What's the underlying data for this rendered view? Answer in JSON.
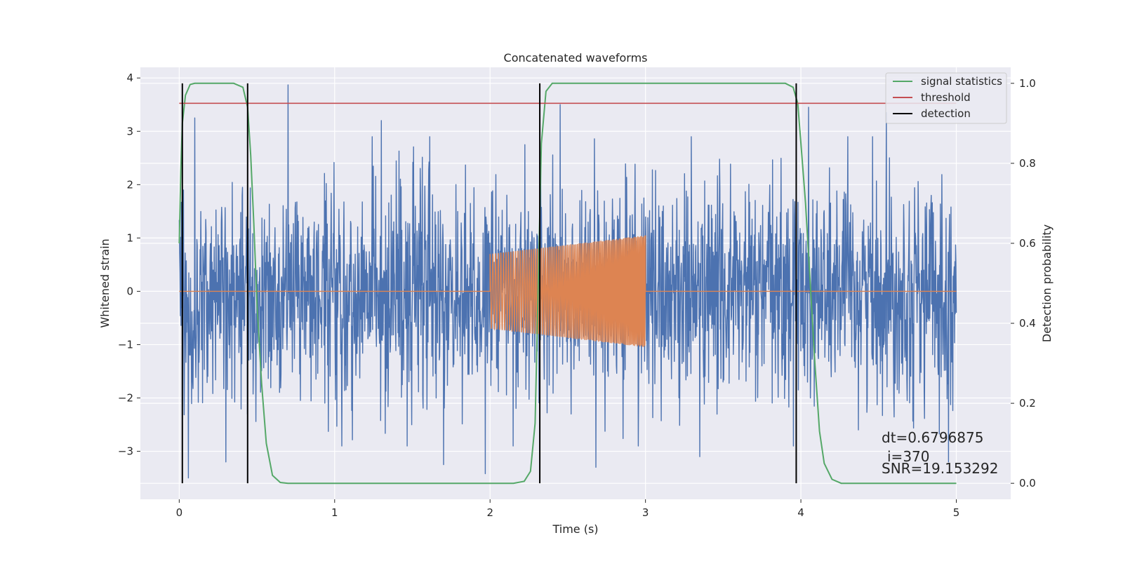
{
  "chart_data": {
    "type": "line",
    "title": "Concatenated waveforms",
    "xlabel": "Time (s)",
    "ylabel": "Whitened strain",
    "y2label": "Detection probability",
    "xlim": [
      -0.25,
      5.35
    ],
    "ylim": [
      -3.9,
      4.2
    ],
    "y2lim": [
      -0.04,
      1.04
    ],
    "xticks": [
      0,
      1,
      2,
      3,
      4,
      5
    ],
    "xtick_labels": [
      "0",
      "1",
      "2",
      "3",
      "4",
      "5"
    ],
    "yticks": [
      -3,
      -2,
      -1,
      0,
      1,
      2,
      3,
      4
    ],
    "ytick_labels": [
      "−3",
      "−2",
      "−1",
      "0",
      "1",
      "2",
      "3",
      "4"
    ],
    "y2ticks": [
      0.0,
      0.2,
      0.4,
      0.6,
      0.8,
      1.0
    ],
    "y2tick_labels": [
      "0.0",
      "0.2",
      "0.4",
      "0.6",
      "0.8",
      "1.0"
    ],
    "grid": true,
    "legend_position": "top-right",
    "series": [
      {
        "name": "",
        "kind": "noisy-strain",
        "axis": "left",
        "color": "#4c72b0",
        "x_range": [
          0,
          5
        ],
        "typical_amplitude": 1.0,
        "peak_values": [
          {
            "x": 0.06,
            "y": -3.5
          },
          {
            "x": 0.1,
            "y": 3.25
          },
          {
            "x": 0.3,
            "y": -3.2
          },
          {
            "x": 0.7,
            "y": 3.87
          },
          {
            "x": 1.3,
            "y": 3.2
          },
          {
            "x": 1.7,
            "y": -3.25
          },
          {
            "x": 1.97,
            "y": -3.42
          },
          {
            "x": 2.45,
            "y": 3.5
          },
          {
            "x": 2.68,
            "y": -3.3
          },
          {
            "x": 3.35,
            "y": -3.1
          },
          {
            "x": 4.05,
            "y": 3.45
          },
          {
            "x": 4.55,
            "y": 3.35
          },
          {
            "x": 4.95,
            "y": -3.2
          }
        ]
      },
      {
        "name": "",
        "kind": "chirp",
        "axis": "left",
        "color": "#dd8452",
        "x_range": [
          0,
          5
        ],
        "active_range": [
          2.0,
          3.0
        ],
        "amplitude_start": 0.7,
        "amplitude_end": 1.05
      },
      {
        "name": "signal statistics",
        "axis": "right",
        "color": "#55a868",
        "points": [
          [
            0.0,
            0.6
          ],
          [
            0.01,
            0.78
          ],
          [
            0.02,
            0.9
          ],
          [
            0.04,
            0.97
          ],
          [
            0.07,
            0.997
          ],
          [
            0.1,
            1.0
          ],
          [
            0.35,
            1.0
          ],
          [
            0.41,
            0.99
          ],
          [
            0.44,
            0.94
          ],
          [
            0.46,
            0.82
          ],
          [
            0.48,
            0.65
          ],
          [
            0.5,
            0.45
          ],
          [
            0.53,
            0.25
          ],
          [
            0.56,
            0.1
          ],
          [
            0.6,
            0.02
          ],
          [
            0.65,
            0.002
          ],
          [
            0.7,
            0.0
          ],
          [
            2.15,
            0.0
          ],
          [
            2.22,
            0.005
          ],
          [
            2.26,
            0.03
          ],
          [
            2.29,
            0.15
          ],
          [
            2.31,
            0.5
          ],
          [
            2.33,
            0.85
          ],
          [
            2.36,
            0.98
          ],
          [
            2.4,
            1.0
          ],
          [
            3.9,
            1.0
          ],
          [
            3.95,
            0.99
          ],
          [
            3.98,
            0.95
          ],
          [
            4.0,
            0.85
          ],
          [
            4.03,
            0.7
          ],
          [
            4.06,
            0.5
          ],
          [
            4.09,
            0.3
          ],
          [
            4.12,
            0.13
          ],
          [
            4.15,
            0.05
          ],
          [
            4.2,
            0.01
          ],
          [
            4.26,
            0.0
          ],
          [
            5.0,
            0.0
          ]
        ]
      },
      {
        "name": "threshold",
        "axis": "right",
        "color": "#c44e52",
        "points": [
          [
            0.0,
            0.95
          ],
          [
            5.0,
            0.95
          ]
        ]
      },
      {
        "name": "detection",
        "axis": "right",
        "color": "#000000",
        "kind": "vertical-lines",
        "x_values": [
          0.02,
          0.44,
          2.32,
          3.97
        ],
        "y_from": 0.0,
        "y_to": 1.0
      }
    ],
    "annotations": [
      "dt=0.6796875",
      "i=370",
      "SNR=19.153292"
    ]
  }
}
